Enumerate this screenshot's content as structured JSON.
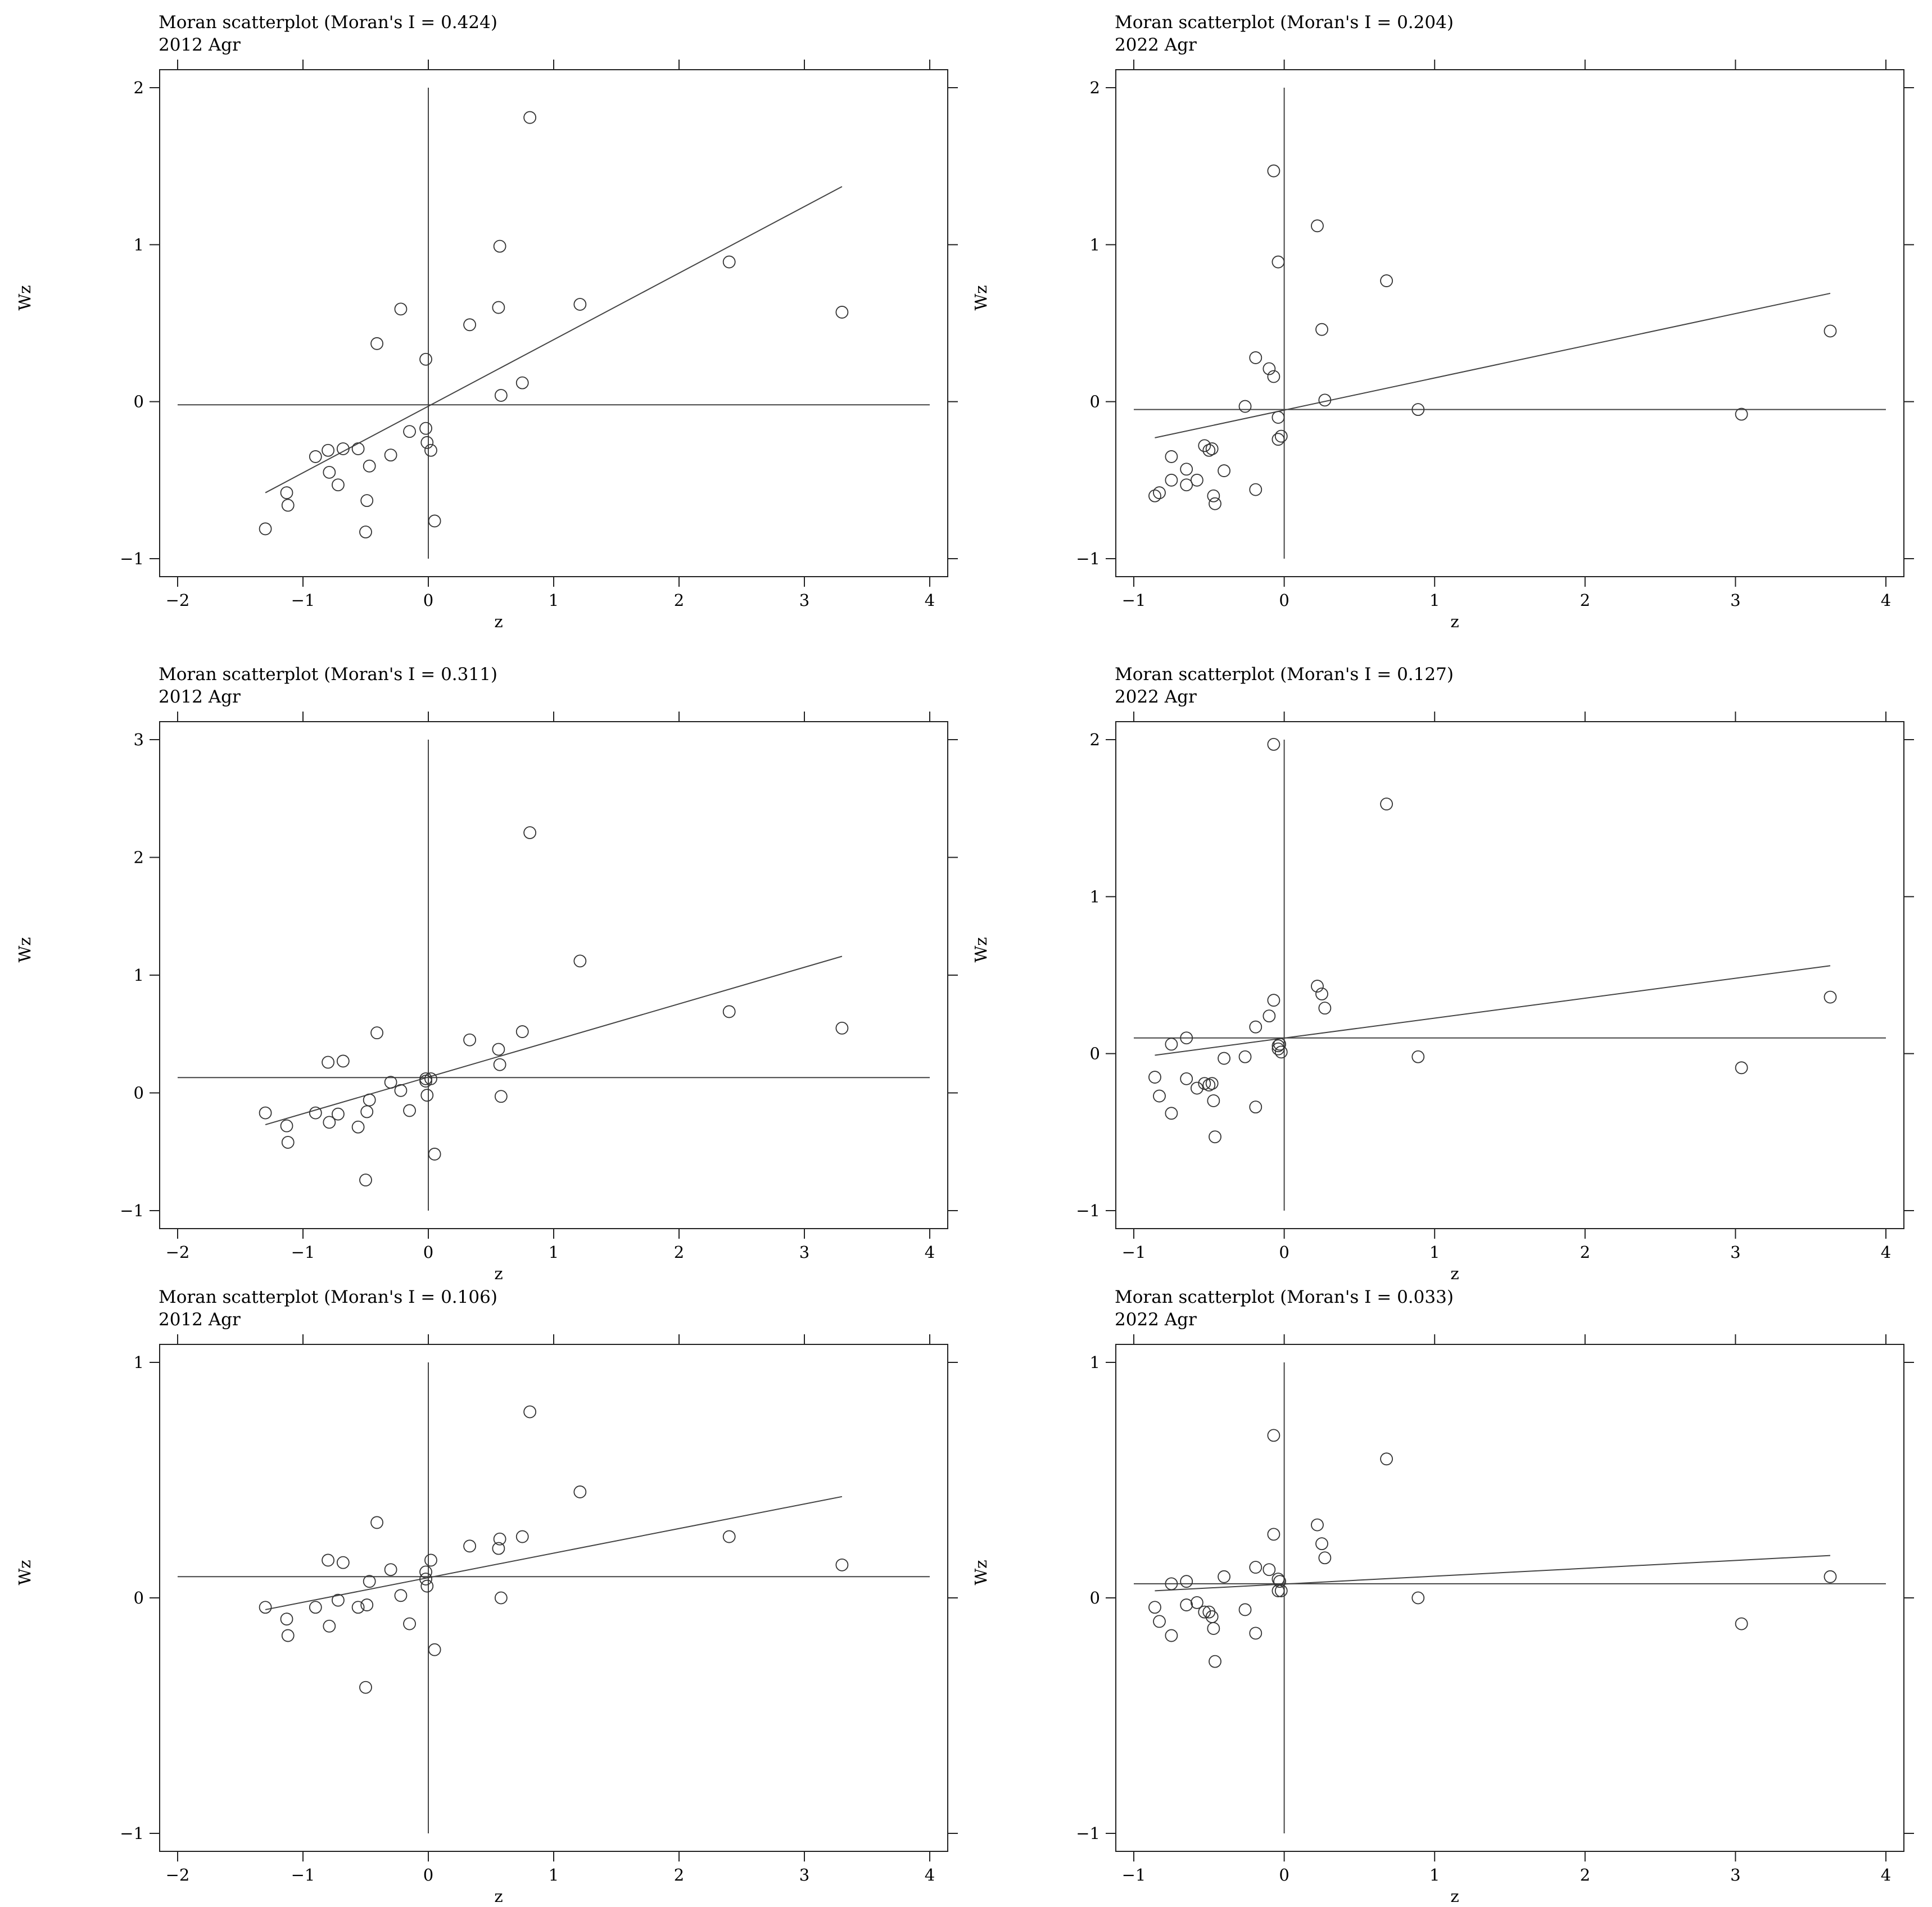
{
  "figure": {
    "panels": [
      {
        "title": "Moran scatterplot (Moran's I = 0.424)",
        "subtitle": "2012 Agr",
        "xlabel": "z",
        "ylabel": "Wz"
      },
      {
        "title": "Moran scatterplot (Moran's I = 0.204)",
        "subtitle": "2022 Agr",
        "xlabel": "z",
        "ylabel": "Wz"
      },
      {
        "title": "Moran scatterplot (Moran's I = 0.311)",
        "subtitle": "2012 Agr",
        "xlabel": "z",
        "ylabel": "Wz"
      },
      {
        "title": "Moran scatterplot (Moran's I = 0.127)",
        "subtitle": "2022 Agr",
        "xlabel": "z",
        "ylabel": "Wz"
      },
      {
        "title": "Moran scatterplot (Moran's I = 0.106)",
        "subtitle": "2012 Agr",
        "xlabel": "z",
        "ylabel": "Wz"
      },
      {
        "title": "Moran scatterplot (Moran's I = 0.033)",
        "subtitle": "2022 Agr",
        "xlabel": "z",
        "ylabel": "Wz"
      }
    ]
  },
  "chart_data": [
    {
      "type": "scatter",
      "title": "Moran scatterplot (Moran's I = 0.424)",
      "subtitle": "2012 Agr",
      "xlabel": "z",
      "ylabel": "Wz",
      "xlim": [
        -2,
        4
      ],
      "ylim": [
        -1,
        2
      ],
      "xticks": [
        -2,
        -1,
        0,
        1,
        2,
        3,
        4
      ],
      "yticks": [
        -1,
        0,
        1,
        2
      ],
      "grid": false,
      "reference_lines": {
        "vertical_x": 0,
        "horizontal_y": -0.02
      },
      "fit_line": {
        "x": [
          -1.3,
          3.3
        ],
        "y": [
          -0.58,
          1.37
        ]
      },
      "points": [
        [
          -1.3,
          -0.81
        ],
        [
          -1.13,
          -0.58
        ],
        [
          -1.12,
          -0.66
        ],
        [
          -0.9,
          -0.35
        ],
        [
          -0.8,
          -0.31
        ],
        [
          -0.79,
          -0.45
        ],
        [
          -0.72,
          -0.53
        ],
        [
          -0.68,
          -0.3
        ],
        [
          -0.56,
          -0.3
        ],
        [
          -0.5,
          -0.83
        ],
        [
          -0.49,
          -0.63
        ],
        [
          -0.47,
          -0.41
        ],
        [
          -0.41,
          0.37
        ],
        [
          -0.3,
          -0.34
        ],
        [
          -0.22,
          0.59
        ],
        [
          -0.15,
          -0.19
        ],
        [
          -0.02,
          -0.17
        ],
        [
          -0.02,
          0.27
        ],
        [
          -0.01,
          -0.26
        ],
        [
          0.02,
          -0.31
        ],
        [
          0.05,
          -0.76
        ],
        [
          0.33,
          0.49
        ],
        [
          0.56,
          0.6
        ],
        [
          0.57,
          0.99
        ],
        [
          0.58,
          0.04
        ],
        [
          0.75,
          0.12
        ],
        [
          0.81,
          1.81
        ],
        [
          1.21,
          0.62
        ],
        [
          2.4,
          0.89
        ],
        [
          3.3,
          0.57
        ]
      ]
    },
    {
      "type": "scatter",
      "title": "Moran scatterplot (Moran's I = 0.204)",
      "subtitle": "2022 Agr",
      "xlabel": "z",
      "ylabel": "Wz",
      "xlim": [
        -1,
        4
      ],
      "ylim": [
        -1,
        2
      ],
      "xticks": [
        -1,
        0,
        1,
        2,
        3,
        4
      ],
      "yticks": [
        -1,
        0,
        1,
        2
      ],
      "grid": false,
      "reference_lines": {
        "vertical_x": 0,
        "horizontal_y": -0.05
      },
      "fit_line": {
        "x": [
          -0.86,
          3.63
        ],
        "y": [
          -0.23,
          0.69
        ]
      },
      "points": [
        [
          -0.86,
          -0.6
        ],
        [
          -0.83,
          -0.58
        ],
        [
          -0.75,
          -0.35
        ],
        [
          -0.75,
          -0.5
        ],
        [
          -0.65,
          -0.43
        ],
        [
          -0.65,
          -0.53
        ],
        [
          -0.58,
          -0.5
        ],
        [
          -0.53,
          -0.28
        ],
        [
          -0.5,
          -0.31
        ],
        [
          -0.48,
          -0.3
        ],
        [
          -0.47,
          -0.6
        ],
        [
          -0.46,
          -0.65
        ],
        [
          -0.4,
          -0.44
        ],
        [
          -0.26,
          -0.03
        ],
        [
          -0.19,
          0.28
        ],
        [
          -0.19,
          -0.56
        ],
        [
          -0.1,
          0.21
        ],
        [
          -0.07,
          0.16
        ],
        [
          -0.07,
          1.47
        ],
        [
          -0.04,
          0.89
        ],
        [
          -0.04,
          -0.1
        ],
        [
          -0.04,
          -0.24
        ],
        [
          -0.02,
          -0.22
        ],
        [
          0.22,
          1.12
        ],
        [
          0.25,
          0.46
        ],
        [
          0.27,
          0.01
        ],
        [
          0.68,
          0.77
        ],
        [
          0.89,
          -0.05
        ],
        [
          3.04,
          -0.08
        ],
        [
          3.63,
          0.45
        ]
      ]
    },
    {
      "type": "scatter",
      "title": "Moran scatterplot (Moran's I = 0.311)",
      "subtitle": "2012 Agr",
      "xlabel": "z",
      "ylabel": "Wz",
      "xlim": [
        -2,
        4
      ],
      "ylim": [
        -1,
        3
      ],
      "xticks": [
        -2,
        -1,
        0,
        1,
        2,
        3,
        4
      ],
      "yticks": [
        -1,
        0,
        1,
        2,
        3
      ],
      "grid": false,
      "reference_lines": {
        "vertical_x": 0,
        "horizontal_y": 0.13
      },
      "fit_line": {
        "x": [
          -1.3,
          3.3
        ],
        "y": [
          -0.27,
          1.16
        ]
      },
      "points": [
        [
          -1.3,
          -0.17
        ],
        [
          -1.13,
          -0.28
        ],
        [
          -1.12,
          -0.42
        ],
        [
          -0.9,
          -0.17
        ],
        [
          -0.8,
          0.26
        ],
        [
          -0.79,
          -0.25
        ],
        [
          -0.72,
          -0.18
        ],
        [
          -0.68,
          0.27
        ],
        [
          -0.56,
          -0.29
        ],
        [
          -0.5,
          -0.74
        ],
        [
          -0.49,
          -0.16
        ],
        [
          -0.47,
          -0.06
        ],
        [
          -0.41,
          0.51
        ],
        [
          -0.3,
          0.09
        ],
        [
          -0.22,
          0.02
        ],
        [
          -0.15,
          -0.15
        ],
        [
          -0.02,
          0.12
        ],
        [
          -0.02,
          0.1
        ],
        [
          -0.01,
          -0.02
        ],
        [
          0.02,
          0.12
        ],
        [
          0.05,
          -0.52
        ],
        [
          0.33,
          0.45
        ],
        [
          0.56,
          0.37
        ],
        [
          0.57,
          0.24
        ],
        [
          0.58,
          -0.03
        ],
        [
          0.75,
          0.52
        ],
        [
          0.81,
          2.21
        ],
        [
          1.21,
          1.12
        ],
        [
          2.4,
          0.69
        ],
        [
          3.3,
          0.55
        ]
      ]
    },
    {
      "type": "scatter",
      "title": "Moran scatterplot (Moran's I = 0.127)",
      "subtitle": "2022 Agr",
      "xlabel": "z",
      "ylabel": "Wz",
      "xlim": [
        -1,
        4
      ],
      "ylim": [
        -1,
        2
      ],
      "xticks": [
        -1,
        0,
        1,
        2,
        3,
        4
      ],
      "yticks": [
        -1,
        0,
        1,
        2
      ],
      "grid": false,
      "reference_lines": {
        "vertical_x": 0,
        "horizontal_y": 0.1
      },
      "fit_line": {
        "x": [
          -0.86,
          3.63
        ],
        "y": [
          -0.01,
          0.56
        ]
      },
      "points": [
        [
          -0.86,
          -0.15
        ],
        [
          -0.83,
          -0.27
        ],
        [
          -0.75,
          0.06
        ],
        [
          -0.75,
          -0.38
        ],
        [
          -0.65,
          -0.16
        ],
        [
          -0.65,
          0.1
        ],
        [
          -0.58,
          -0.22
        ],
        [
          -0.53,
          -0.19
        ],
        [
          -0.5,
          -0.2
        ],
        [
          -0.48,
          -0.19
        ],
        [
          -0.47,
          -0.3
        ],
        [
          -0.46,
          -0.53
        ],
        [
          -0.4,
          -0.03
        ],
        [
          -0.26,
          -0.02
        ],
        [
          -0.19,
          0.17
        ],
        [
          -0.19,
          -0.34
        ],
        [
          -0.1,
          0.24
        ],
        [
          -0.07,
          0.34
        ],
        [
          -0.07,
          1.97
        ],
        [
          -0.04,
          0.05
        ],
        [
          -0.04,
          0.03
        ],
        [
          -0.03,
          0.06
        ],
        [
          -0.02,
          0.01
        ],
        [
          0.22,
          0.43
        ],
        [
          0.25,
          0.38
        ],
        [
          0.27,
          0.29
        ],
        [
          0.68,
          1.59
        ],
        [
          0.89,
          -0.02
        ],
        [
          3.04,
          -0.09
        ],
        [
          3.63,
          0.36
        ]
      ]
    },
    {
      "type": "scatter",
      "title": "Moran scatterplot (Moran's I = 0.106)",
      "subtitle": "2012 Agr",
      "xlabel": "z",
      "ylabel": "Wz",
      "xlim": [
        -2,
        4
      ],
      "ylim": [
        -1,
        1
      ],
      "xticks": [
        -2,
        -1,
        0,
        1,
        2,
        3,
        4
      ],
      "yticks": [
        -1,
        0,
        1
      ],
      "grid": false,
      "reference_lines": {
        "vertical_x": 0,
        "horizontal_y": 0.09
      },
      "fit_line": {
        "x": [
          -1.3,
          3.3
        ],
        "y": [
          -0.05,
          0.43
        ]
      },
      "points": [
        [
          -1.3,
          -0.04
        ],
        [
          -1.13,
          -0.09
        ],
        [
          -1.12,
          -0.16
        ],
        [
          -0.9,
          -0.04
        ],
        [
          -0.8,
          0.16
        ],
        [
          -0.79,
          -0.12
        ],
        [
          -0.72,
          -0.01
        ],
        [
          -0.68,
          0.15
        ],
        [
          -0.56,
          -0.04
        ],
        [
          -0.5,
          -0.38
        ],
        [
          -0.49,
          -0.03
        ],
        [
          -0.47,
          0.07
        ],
        [
          -0.41,
          0.32
        ],
        [
          -0.3,
          0.12
        ],
        [
          -0.22,
          0.01
        ],
        [
          -0.15,
          -0.11
        ],
        [
          -0.02,
          0.11
        ],
        [
          -0.02,
          0.08
        ],
        [
          -0.01,
          0.05
        ],
        [
          0.02,
          0.16
        ],
        [
          0.05,
          -0.22
        ],
        [
          0.33,
          0.22
        ],
        [
          0.56,
          0.21
        ],
        [
          0.57,
          0.25
        ],
        [
          0.58,
          0.0
        ],
        [
          0.75,
          0.26
        ],
        [
          0.81,
          0.79
        ],
        [
          1.21,
          0.45
        ],
        [
          2.4,
          0.26
        ],
        [
          3.3,
          0.14
        ]
      ]
    },
    {
      "type": "scatter",
      "title": "Moran scatterplot (Moran's I = 0.033)",
      "subtitle": "2022 Agr",
      "xlabel": "z",
      "ylabel": "Wz",
      "xlim": [
        -1,
        4
      ],
      "ylim": [
        -1,
        1
      ],
      "xticks": [
        -1,
        0,
        1,
        2,
        3,
        4
      ],
      "yticks": [
        -1,
        0,
        1
      ],
      "grid": false,
      "reference_lines": {
        "vertical_x": 0,
        "horizontal_y": 0.06
      },
      "fit_line": {
        "x": [
          -0.86,
          3.63
        ],
        "y": [
          0.03,
          0.18
        ]
      },
      "points": [
        [
          -0.86,
          -0.04
        ],
        [
          -0.83,
          -0.1
        ],
        [
          -0.75,
          0.06
        ],
        [
          -0.75,
          -0.16
        ],
        [
          -0.65,
          0.07
        ],
        [
          -0.65,
          -0.03
        ],
        [
          -0.58,
          -0.02
        ],
        [
          -0.53,
          -0.06
        ],
        [
          -0.5,
          -0.06
        ],
        [
          -0.48,
          -0.08
        ],
        [
          -0.47,
          -0.13
        ],
        [
          -0.46,
          -0.27
        ],
        [
          -0.4,
          0.09
        ],
        [
          -0.26,
          -0.05
        ],
        [
          -0.19,
          0.13
        ],
        [
          -0.19,
          -0.15
        ],
        [
          -0.1,
          0.12
        ],
        [
          -0.07,
          0.27
        ],
        [
          -0.07,
          0.69
        ],
        [
          -0.04,
          0.08
        ],
        [
          -0.04,
          0.03
        ],
        [
          -0.03,
          0.07
        ],
        [
          -0.02,
          0.03
        ],
        [
          0.22,
          0.31
        ],
        [
          0.25,
          0.23
        ],
        [
          0.27,
          0.17
        ],
        [
          0.68,
          0.59
        ],
        [
          0.89,
          0.0
        ],
        [
          3.04,
          -0.11
        ],
        [
          3.63,
          0.09
        ]
      ]
    }
  ]
}
